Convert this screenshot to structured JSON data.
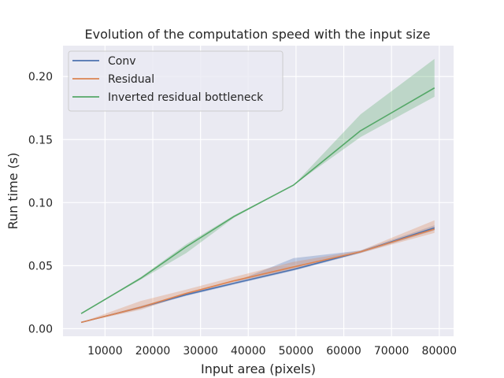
{
  "chart_data": {
    "type": "line",
    "title": "Evolution of the computation speed with the input size",
    "xlabel": "Input area (pixels)",
    "ylabel": "Run time (s)",
    "xlim": [
      1200,
      83000
    ],
    "ylim": [
      -0.006,
      0.2245
    ],
    "x_ticks": [
      10000,
      20000,
      30000,
      40000,
      50000,
      60000,
      70000,
      80000
    ],
    "x_tick_labels": [
      "10000",
      "20000",
      "30000",
      "40000",
      "50000",
      "60000",
      "70000",
      "80000"
    ],
    "y_ticks": [
      0.0,
      0.05,
      0.1,
      0.15,
      0.2
    ],
    "y_tick_labels": [
      "0.00",
      "0.05",
      "0.10",
      "0.15",
      "0.20"
    ],
    "grid": true,
    "legend_position": "top-left",
    "x": [
      5000,
      17500,
      27000,
      37000,
      49500,
      63500,
      79000
    ],
    "series": [
      {
        "name": "Conv",
        "color": "#4c72b0",
        "values": [
          0.005,
          0.017,
          0.027,
          0.036,
          0.047,
          0.061,
          0.08
        ],
        "lower": [
          0.005,
          0.016,
          0.026,
          0.035,
          0.046,
          0.06,
          0.078
        ],
        "upper": [
          0.005,
          0.018,
          0.028,
          0.037,
          0.056,
          0.062,
          0.082
        ]
      },
      {
        "name": "Residual",
        "color": "#dd8452",
        "values": [
          0.005,
          0.017,
          0.028,
          0.038,
          0.049,
          0.061,
          0.079
        ],
        "lower": [
          0.005,
          0.015,
          0.027,
          0.037,
          0.047,
          0.06,
          0.076
        ],
        "upper": [
          0.005,
          0.022,
          0.031,
          0.041,
          0.053,
          0.062,
          0.086
        ]
      },
      {
        "name": "Inverted residual bottleneck",
        "color": "#55a868",
        "values": [
          0.012,
          0.04,
          0.065,
          0.089,
          0.114,
          0.157,
          0.191
        ],
        "lower": [
          0.012,
          0.039,
          0.06,
          0.088,
          0.114,
          0.152,
          0.184
        ],
        "upper": [
          0.012,
          0.041,
          0.067,
          0.09,
          0.114,
          0.17,
          0.214
        ]
      }
    ]
  }
}
